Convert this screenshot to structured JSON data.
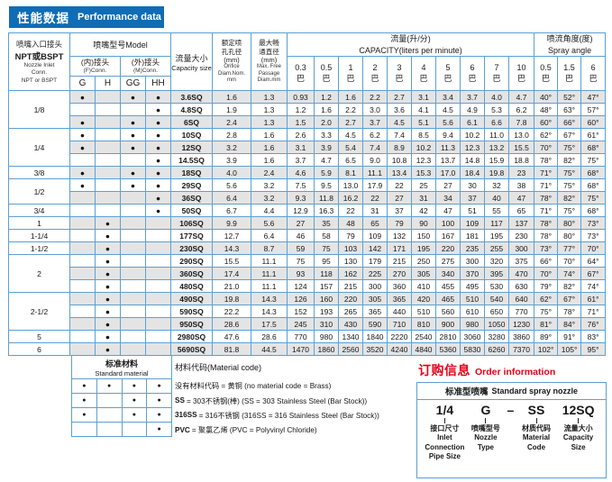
{
  "colors": {
    "accent_blue": "#0f6cb5",
    "border_blue": "#5ca0d3",
    "row_alt_gray": "#e4e4e4",
    "red": "#e60014"
  },
  "title": {
    "zh": "性能数据",
    "en": "Performance data"
  },
  "table": {
    "inlet_header": {
      "zh1": "喷嘴入口接头",
      "zh2": "NPT或BSPT",
      "en": "Nozzle Inlet\nConn.\nNPT or BSPT"
    },
    "model_header": "喷嘴型号Model",
    "fconn": {
      "zh": "(内)接头",
      "en": "(F)Conn."
    },
    "mconn": {
      "zh": "(外)接头",
      "en": "(M)Conn."
    },
    "conn_cols": [
      "G",
      "H",
      "GG",
      "HH"
    ],
    "capacity_size_header": {
      "zh": "流量大小",
      "en": "Capacity size"
    },
    "orifice_header": {
      "zh": "额定喷\n孔孔径\n(mm)",
      "en": "Orifice\nDiam.Nom.\nmm"
    },
    "passage_header": {
      "zh": "最大畅\n通直径\n(mm)",
      "en": "Max. Free\nPassage\nDiam.mm"
    },
    "capacity_group": "流量(升/分)\nCAPACITY(liters per minute)",
    "spray_group": "喷流角度(度)\nSpray angle",
    "bar_unit": "巴",
    "pressures": [
      "0.3",
      "0.5",
      "1",
      "2",
      "3",
      "4",
      "5",
      "6",
      "7",
      "10"
    ],
    "spray_pressures": [
      "0.5",
      "1.5",
      "6"
    ],
    "inlet_groups": [
      {
        "label": "1/8",
        "rows": 3
      },
      {
        "label": "1/4",
        "rows": 3
      },
      {
        "label": "3/8",
        "rows": 1
      },
      {
        "label": "1/2",
        "rows": 2
      },
      {
        "label": "3/4",
        "rows": 1
      },
      {
        "label": "1",
        "rows": 1
      },
      {
        "label": "1-1/4",
        "rows": 1
      },
      {
        "label": "1-1/2",
        "rows": 1
      },
      {
        "label": "2",
        "rows": 3
      },
      {
        "label": "2-1/2",
        "rows": 3
      },
      {
        "label": "5",
        "rows": 1
      },
      {
        "label": "6",
        "rows": 1
      }
    ],
    "rows": [
      {
        "size": "3.6SQ",
        "conn": [
          1,
          0,
          1,
          1
        ],
        "orifice": "1.6",
        "passage": "1.3",
        "capacity": [
          "0.93",
          "1.2",
          "1.6",
          "2.2",
          "2.7",
          "3.1",
          "3.4",
          "3.7",
          "4.0",
          "4.7"
        ],
        "angles": [
          "40°",
          "52°",
          "47°"
        ]
      },
      {
        "size": "4.8SQ",
        "conn": [
          0,
          0,
          0,
          1
        ],
        "orifice": "1.9",
        "passage": "1.3",
        "capacity": [
          "1.2",
          "1.6",
          "2.2",
          "3.0",
          "3.6",
          "4.1",
          "4.5",
          "4.9",
          "5.3",
          "6.2"
        ],
        "angles": [
          "48°",
          "63°",
          "57°"
        ]
      },
      {
        "size": "6SQ",
        "conn": [
          1,
          0,
          1,
          1
        ],
        "orifice": "2.4",
        "passage": "1.3",
        "capacity": [
          "1.5",
          "2.0",
          "2.7",
          "3.7",
          "4.5",
          "5.1",
          "5.6",
          "6.1",
          "6.6",
          "7.8"
        ],
        "angles": [
          "60°",
          "66°",
          "60°"
        ]
      },
      {
        "size": "10SQ",
        "conn": [
          1,
          0,
          1,
          1
        ],
        "orifice": "2.8",
        "passage": "1.6",
        "capacity": [
          "2.6",
          "3.3",
          "4.5",
          "6.2",
          "7.4",
          "8.5",
          "9.4",
          "10.2",
          "11.0",
          "13.0"
        ],
        "angles": [
          "62°",
          "67°",
          "61°"
        ]
      },
      {
        "size": "12SQ",
        "conn": [
          1,
          0,
          1,
          1
        ],
        "orifice": "3.2",
        "passage": "1.6",
        "capacity": [
          "3.1",
          "3.9",
          "5.4",
          "7.4",
          "8.9",
          "10.2",
          "11.3",
          "12.3",
          "13.2",
          "15.5"
        ],
        "angles": [
          "70°",
          "75°",
          "68°"
        ]
      },
      {
        "size": "14.5SQ",
        "conn": [
          0,
          0,
          0,
          1
        ],
        "orifice": "3.9",
        "passage": "1.6",
        "capacity": [
          "3.7",
          "4.7",
          "6.5",
          "9.0",
          "10.8",
          "12.3",
          "13.7",
          "14.8",
          "15.9",
          "18.8"
        ],
        "angles": [
          "78°",
          "82°",
          "75°"
        ]
      },
      {
        "size": "18SQ",
        "conn": [
          1,
          0,
          1,
          1
        ],
        "orifice": "4.0",
        "passage": "2.4",
        "capacity": [
          "4.6",
          "5.9",
          "8.1",
          "11.1",
          "13.4",
          "15.3",
          "17.0",
          "18.4",
          "19.8",
          "23"
        ],
        "angles": [
          "71°",
          "75°",
          "68°"
        ]
      },
      {
        "size": "29SQ",
        "conn": [
          1,
          0,
          1,
          1
        ],
        "orifice": "5.6",
        "passage": "3.2",
        "capacity": [
          "7.5",
          "9.5",
          "13.0",
          "17.9",
          "22",
          "25",
          "27",
          "30",
          "32",
          "38"
        ],
        "angles": [
          "71°",
          "75°",
          "68°"
        ]
      },
      {
        "size": "36SQ",
        "conn": [
          0,
          0,
          0,
          1
        ],
        "orifice": "6.4",
        "passage": "3.2",
        "capacity": [
          "9.3",
          "11.8",
          "16.2",
          "22",
          "27",
          "31",
          "34",
          "37",
          "40",
          "47"
        ],
        "angles": [
          "78°",
          "82°",
          "75°"
        ]
      },
      {
        "size": "50SQ",
        "conn": [
          0,
          0,
          0,
          1
        ],
        "orifice": "6.7",
        "passage": "4.4",
        "capacity": [
          "12.9",
          "16.3",
          "22",
          "31",
          "37",
          "42",
          "47",
          "51",
          "55",
          "65"
        ],
        "angles": [
          "71°",
          "75°",
          "68°"
        ]
      },
      {
        "size": "106SQ",
        "conn": [
          0,
          1,
          0,
          0
        ],
        "orifice": "9.9",
        "passage": "5.6",
        "capacity": [
          "27",
          "35",
          "48",
          "65",
          "79",
          "90",
          "100",
          "109",
          "117",
          "137"
        ],
        "angles": [
          "78°",
          "80°",
          "73°"
        ]
      },
      {
        "size": "177SQ",
        "conn": [
          0,
          1,
          0,
          0
        ],
        "orifice": "12.7",
        "passage": "6.4",
        "capacity": [
          "46",
          "58",
          "79",
          "109",
          "132",
          "150",
          "167",
          "181",
          "195",
          "230"
        ],
        "angles": [
          "78°",
          "80°",
          "73°"
        ]
      },
      {
        "size": "230SQ",
        "conn": [
          0,
          1,
          0,
          0
        ],
        "orifice": "14.3",
        "passage": "8.7",
        "capacity": [
          "59",
          "75",
          "103",
          "142",
          "171",
          "195",
          "220",
          "235",
          "255",
          "300"
        ],
        "angles": [
          "73°",
          "77°",
          "70°"
        ]
      },
      {
        "size": "290SQ",
        "conn": [
          0,
          1,
          0,
          0
        ],
        "orifice": "15.5",
        "passage": "11.1",
        "capacity": [
          "75",
          "95",
          "130",
          "179",
          "215",
          "250",
          "275",
          "300",
          "320",
          "375"
        ],
        "angles": [
          "66°",
          "70°",
          "64°"
        ]
      },
      {
        "size": "360SQ",
        "conn": [
          0,
          1,
          0,
          0
        ],
        "orifice": "17.4",
        "passage": "11.1",
        "capacity": [
          "93",
          "118",
          "162",
          "225",
          "270",
          "305",
          "340",
          "370",
          "395",
          "470"
        ],
        "angles": [
          "70°",
          "74°",
          "67°"
        ]
      },
      {
        "size": "480SQ",
        "conn": [
          0,
          1,
          0,
          0
        ],
        "orifice": "21.0",
        "passage": "11.1",
        "capacity": [
          "124",
          "157",
          "215",
          "300",
          "360",
          "410",
          "455",
          "495",
          "530",
          "630"
        ],
        "angles": [
          "79°",
          "82°",
          "74°"
        ]
      },
      {
        "size": "490SQ",
        "conn": [
          0,
          1,
          0,
          0
        ],
        "orifice": "19.8",
        "passage": "14.3",
        "capacity": [
          "126",
          "160",
          "220",
          "305",
          "365",
          "420",
          "465",
          "510",
          "540",
          "640"
        ],
        "angles": [
          "62°",
          "67°",
          "61°"
        ]
      },
      {
        "size": "590SQ",
        "conn": [
          0,
          1,
          0,
          0
        ],
        "orifice": "22.2",
        "passage": "14.3",
        "capacity": [
          "152",
          "193",
          "265",
          "365",
          "440",
          "510",
          "560",
          "610",
          "650",
          "770"
        ],
        "angles": [
          "75°",
          "78°",
          "71°"
        ]
      },
      {
        "size": "950SQ",
        "conn": [
          0,
          1,
          0,
          0
        ],
        "orifice": "28.6",
        "passage": "17.5",
        "capacity": [
          "245",
          "310",
          "430",
          "590",
          "710",
          "810",
          "900",
          "980",
          "1050",
          "1230"
        ],
        "angles": [
          "81°",
          "84°",
          "76°"
        ]
      },
      {
        "size": "2980SQ",
        "conn": [
          0,
          1,
          0,
          0
        ],
        "orifice": "47.6",
        "passage": "28.6",
        "capacity": [
          "770",
          "980",
          "1340",
          "1840",
          "2220",
          "2540",
          "2810",
          "3060",
          "3280",
          "3860"
        ],
        "angles": [
          "89°",
          "91°",
          "83°"
        ]
      },
      {
        "size": "5690SQ",
        "conn": [
          0,
          1,
          0,
          0
        ],
        "orifice": "81.8",
        "passage": "44.5",
        "capacity": [
          "1470",
          "1860",
          "2560",
          "3520",
          "4240",
          "4840",
          "5360",
          "5830",
          "6260",
          "7370"
        ],
        "angles": [
          "102°",
          "105°",
          "95°"
        ]
      }
    ]
  },
  "materials": {
    "table_header_zh": "标准材料",
    "table_header_en": "Standard material",
    "legend_title": "材料代码(Material code)",
    "rows": [
      {
        "dots": [
          1,
          1,
          1,
          1
        ],
        "code": "",
        "text": "没有材料代码 = 黄铜  (no material code = Brass)"
      },
      {
        "dots": [
          1,
          0,
          1,
          1
        ],
        "code": "SS",
        "text": "= 303不锈钢(棒)  (SS = 303 Stainless Steel (Bar Stock))"
      },
      {
        "dots": [
          1,
          0,
          1,
          1
        ],
        "code": "316SS",
        "text": "= 316不锈钢 (316SS = 316 Stainless Steel (Bar Stock))"
      },
      {
        "dots": [
          0,
          0,
          0,
          1
        ],
        "code": "PVC",
        "text": "= 聚氯乙烯 (PVC = Polyvinyl Chloride)"
      }
    ]
  },
  "order": {
    "title_zh": "订购信息",
    "title_en": "Order information",
    "box_header_zh": "标准型喷嘴",
    "box_header_en": "Standard spray nozzle",
    "parts": [
      {
        "code": "1/4",
        "tick": true,
        "labels": "接口尺寸\nInlet\nConnection\nPipe Size"
      },
      {
        "code": "G",
        "tick": true,
        "labels": "喷嘴型号\nNozzle\nType"
      },
      {
        "code": "–",
        "tick": false,
        "labels": ""
      },
      {
        "code": "SS",
        "tick": true,
        "labels": "材质代码\nMaterial\nCode"
      },
      {
        "code": "12SQ",
        "tick": true,
        "labels": "流量大小\nCapacity\nSize"
      }
    ]
  }
}
